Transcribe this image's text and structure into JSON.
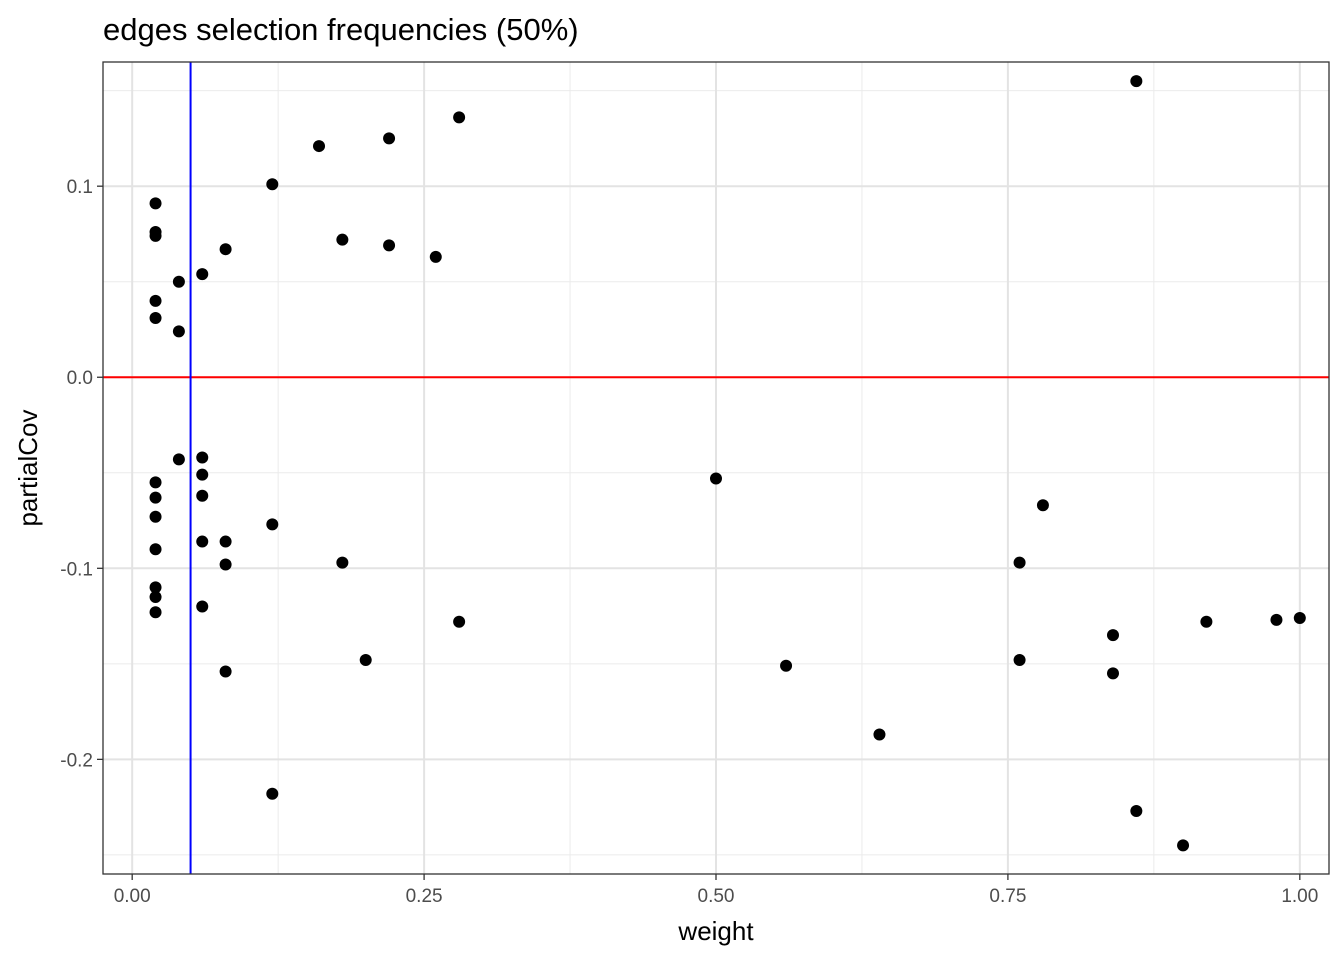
{
  "chart_data": {
    "type": "scatter",
    "title": "edges selection frequencies (50%)",
    "xlabel": "weight",
    "ylabel": "partialCov",
    "xlim": [
      -0.025,
      1.025
    ],
    "ylim": [
      -0.26,
      0.165
    ],
    "x_ticks": [
      0.0,
      0.25,
      0.5,
      0.75,
      1.0
    ],
    "x_tick_labels": [
      "0.00",
      "0.25",
      "0.50",
      "0.75",
      "1.00"
    ],
    "y_ticks": [
      0.1,
      0.0,
      -0.1,
      -0.2
    ],
    "y_tick_labels": [
      "0.1",
      "0.0",
      "-0.1",
      "-0.2"
    ],
    "grid": true,
    "reference_lines": [
      {
        "orientation": "horizontal",
        "value": 0.0,
        "color": "#ff0000"
      },
      {
        "orientation": "vertical",
        "value": 0.05,
        "color": "#0000ff"
      }
    ],
    "point_color": "#000000",
    "points": [
      {
        "x": 0.02,
        "y": 0.091
      },
      {
        "x": 0.02,
        "y": 0.076
      },
      {
        "x": 0.02,
        "y": 0.074
      },
      {
        "x": 0.02,
        "y": 0.04
      },
      {
        "x": 0.02,
        "y": 0.031
      },
      {
        "x": 0.04,
        "y": 0.05
      },
      {
        "x": 0.04,
        "y": 0.024
      },
      {
        "x": 0.06,
        "y": 0.054
      },
      {
        "x": 0.08,
        "y": 0.067
      },
      {
        "x": 0.12,
        "y": 0.101
      },
      {
        "x": 0.16,
        "y": 0.121
      },
      {
        "x": 0.18,
        "y": 0.072
      },
      {
        "x": 0.22,
        "y": 0.125
      },
      {
        "x": 0.22,
        "y": 0.069
      },
      {
        "x": 0.26,
        "y": 0.063
      },
      {
        "x": 0.28,
        "y": 0.136
      },
      {
        "x": 0.86,
        "y": 0.155
      },
      {
        "x": 0.04,
        "y": -0.043
      },
      {
        "x": 0.06,
        "y": -0.042
      },
      {
        "x": 0.06,
        "y": -0.051
      },
      {
        "x": 0.06,
        "y": -0.062
      },
      {
        "x": 0.06,
        "y": -0.086
      },
      {
        "x": 0.06,
        "y": -0.12
      },
      {
        "x": 0.02,
        "y": -0.055
      },
      {
        "x": 0.02,
        "y": -0.063
      },
      {
        "x": 0.02,
        "y": -0.073
      },
      {
        "x": 0.02,
        "y": -0.09
      },
      {
        "x": 0.02,
        "y": -0.11
      },
      {
        "x": 0.02,
        "y": -0.115
      },
      {
        "x": 0.02,
        "y": -0.123
      },
      {
        "x": 0.08,
        "y": -0.086
      },
      {
        "x": 0.08,
        "y": -0.098
      },
      {
        "x": 0.08,
        "y": -0.154
      },
      {
        "x": 0.12,
        "y": -0.077
      },
      {
        "x": 0.12,
        "y": -0.218
      },
      {
        "x": 0.18,
        "y": -0.097
      },
      {
        "x": 0.2,
        "y": -0.148
      },
      {
        "x": 0.28,
        "y": -0.128
      },
      {
        "x": 0.5,
        "y": -0.053
      },
      {
        "x": 0.56,
        "y": -0.151
      },
      {
        "x": 0.64,
        "y": -0.187
      },
      {
        "x": 0.76,
        "y": -0.097
      },
      {
        "x": 0.76,
        "y": -0.148
      },
      {
        "x": 0.78,
        "y": -0.067
      },
      {
        "x": 0.84,
        "y": -0.135
      },
      {
        "x": 0.84,
        "y": -0.155
      },
      {
        "x": 0.86,
        "y": -0.227
      },
      {
        "x": 0.9,
        "y": -0.245
      },
      {
        "x": 0.92,
        "y": -0.128
      },
      {
        "x": 0.98,
        "y": -0.127
      },
      {
        "x": 1.0,
        "y": -0.126
      }
    ]
  }
}
